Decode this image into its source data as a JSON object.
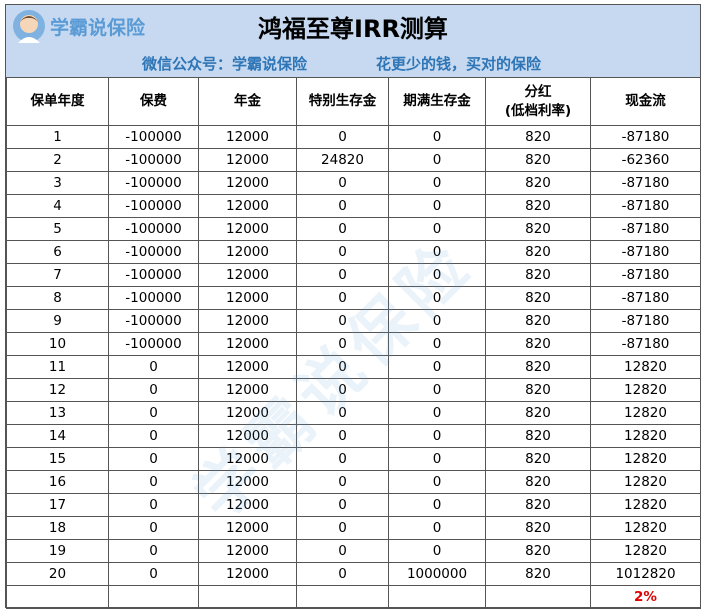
{
  "header": {
    "logo_text": "学霸说保险",
    "title": "鸿福至尊IRR测算",
    "subtitle_left": "微信公众号：学霸说保险",
    "subtitle_right": "花更少的钱，买对的保险"
  },
  "table": {
    "columns": [
      "保单年度",
      "保费",
      "年金",
      "特别生存金",
      "期满生存金",
      "分红\n(低档利率)",
      "现金流"
    ],
    "rows": [
      [
        1,
        -100000,
        12000,
        0,
        0,
        820,
        -87180
      ],
      [
        2,
        -100000,
        12000,
        24820,
        0,
        820,
        -62360
      ],
      [
        3,
        -100000,
        12000,
        0,
        0,
        820,
        -87180
      ],
      [
        4,
        -100000,
        12000,
        0,
        0,
        820,
        -87180
      ],
      [
        5,
        -100000,
        12000,
        0,
        0,
        820,
        -87180
      ],
      [
        6,
        -100000,
        12000,
        0,
        0,
        820,
        -87180
      ],
      [
        7,
        -100000,
        12000,
        0,
        0,
        820,
        -87180
      ],
      [
        8,
        -100000,
        12000,
        0,
        0,
        820,
        -87180
      ],
      [
        9,
        -100000,
        12000,
        0,
        0,
        820,
        -87180
      ],
      [
        10,
        -100000,
        12000,
        0,
        0,
        820,
        -87180
      ],
      [
        11,
        0,
        12000,
        0,
        0,
        820,
        12820
      ],
      [
        12,
        0,
        12000,
        0,
        0,
        820,
        12820
      ],
      [
        13,
        0,
        12000,
        0,
        0,
        820,
        12820
      ],
      [
        14,
        0,
        12000,
        0,
        0,
        820,
        12820
      ],
      [
        15,
        0,
        12000,
        0,
        0,
        820,
        12820
      ],
      [
        16,
        0,
        12000,
        0,
        0,
        820,
        12820
      ],
      [
        17,
        0,
        12000,
        0,
        0,
        820,
        12820
      ],
      [
        18,
        0,
        12000,
        0,
        0,
        820,
        12820
      ],
      [
        19,
        0,
        12000,
        0,
        0,
        820,
        12820
      ],
      [
        20,
        0,
        12000,
        0,
        1000000,
        820,
        1012820
      ]
    ],
    "irr": "2%"
  },
  "watermark": "学霸说保险"
}
